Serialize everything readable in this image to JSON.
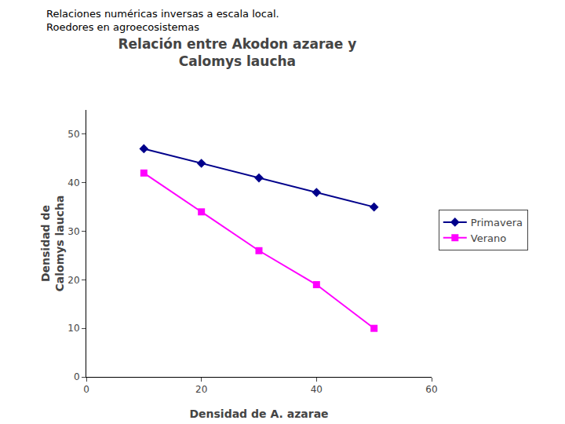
{
  "chart_data": {
    "type": "line",
    "title": "Relación entre Akodon azarae y\nCalomys laucha",
    "subtitle": "Relaciones numéricas inversas a escala local.\nRoedores en agroecosistemas",
    "x_label": "Densidad de A. azarae",
    "y_label": "Densidad de\nCalomys laucha",
    "x": [
      10,
      20,
      30,
      40,
      50
    ],
    "series": [
      {
        "name": "Primavera",
        "color": "#00008B",
        "marker": "diamond",
        "values": [
          47,
          44,
          41,
          38,
          35
        ]
      },
      {
        "name": "Verano",
        "color": "#FF00FF",
        "marker": "square",
        "values": [
          42,
          34,
          26,
          19,
          10
        ]
      }
    ],
    "xlim": [
      0,
      60
    ],
    "ylim": [
      0,
      55
    ],
    "xticks": [
      0,
      20,
      40,
      60
    ],
    "yticks": [
      0,
      10,
      20,
      30,
      40,
      50
    ],
    "grid": false,
    "legend": "right"
  }
}
